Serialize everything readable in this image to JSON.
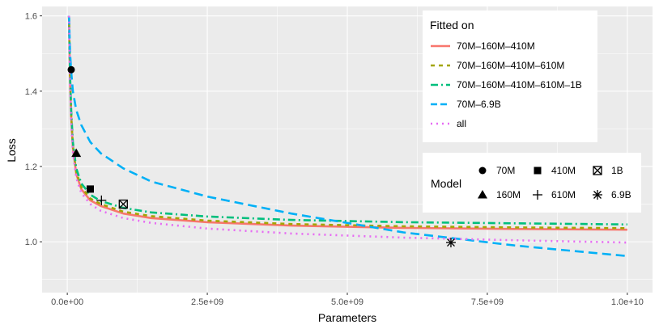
{
  "chart_data": {
    "type": "line",
    "xlabel": "Parameters",
    "ylabel": "Loss",
    "xlim": [
      -450000000.0,
      10450000000.0
    ],
    "ylim": [
      0.865,
      1.625
    ],
    "x_ticks": [
      0,
      2500000000,
      5000000000,
      7500000000,
      10000000000
    ],
    "x_tick_labels": [
      "0.0e+00",
      "2.5e+09",
      "5.0e+09",
      "7.5e+09",
      "1.0e+10"
    ],
    "y_ticks": [
      1.0,
      1.2,
      1.4,
      1.6
    ],
    "y_tick_labels": [
      "1.0",
      "1.2",
      "1.4",
      "1.6"
    ],
    "grid": true,
    "fitted_legend": {
      "title": "Fitted on",
      "position": "top-right"
    },
    "model_legend": {
      "title": "Model",
      "position": "right"
    },
    "series": [
      {
        "name": "70M–160M–410M",
        "color": "#F8766D",
        "dash": "solid",
        "x": [
          30000000,
          50000000,
          70000000,
          100000000,
          160000000,
          250000000,
          410000000,
          600000000,
          1000000000,
          1500000000,
          2500000000,
          4000000000,
          6000000000,
          8000000000,
          10000000000
        ],
        "y": [
          1.6,
          1.42,
          1.33,
          1.25,
          1.18,
          1.14,
          1.11,
          1.095,
          1.075,
          1.063,
          1.052,
          1.043,
          1.037,
          1.034,
          1.032
        ]
      },
      {
        "name": "70M–160M–410M–610M",
        "color": "#A3A500",
        "dash": "dashed",
        "x": [
          30000000,
          50000000,
          70000000,
          100000000,
          160000000,
          250000000,
          410000000,
          600000000,
          1000000000,
          1500000000,
          2500000000,
          4000000000,
          6000000000,
          8000000000,
          10000000000
        ],
        "y": [
          1.6,
          1.43,
          1.335,
          1.255,
          1.185,
          1.145,
          1.115,
          1.1,
          1.08,
          1.068,
          1.056,
          1.047,
          1.041,
          1.038,
          1.036
        ]
      },
      {
        "name": "70M–160M–410M–610M–1B",
        "color": "#00BF7D",
        "dash": "dotdash",
        "x": [
          30000000,
          50000000,
          70000000,
          100000000,
          160000000,
          250000000,
          410000000,
          600000000,
          1000000000,
          1500000000,
          2500000000,
          4000000000,
          6000000000,
          8000000000,
          10000000000
        ],
        "y": [
          1.6,
          1.44,
          1.345,
          1.265,
          1.195,
          1.155,
          1.125,
          1.108,
          1.09,
          1.078,
          1.067,
          1.058,
          1.052,
          1.049,
          1.046
        ]
      },
      {
        "name": "70M–6.9B",
        "color": "#00B0F6",
        "dash": "longdash",
        "x": [
          30000000,
          50000000,
          70000000,
          100000000,
          160000000,
          250000000,
          410000000,
          600000000,
          1000000000,
          1500000000,
          2500000000,
          4000000000,
          6000000000,
          8000000000,
          10000000000
        ],
        "y": [
          1.6,
          1.5,
          1.45,
          1.4,
          1.35,
          1.31,
          1.265,
          1.235,
          1.195,
          1.16,
          1.12,
          1.075,
          1.025,
          0.99,
          0.962
        ]
      },
      {
        "name": "all",
        "color": "#E76BF3",
        "dash": "dotted",
        "x": [
          30000000,
          50000000,
          70000000,
          100000000,
          160000000,
          250000000,
          410000000,
          600000000,
          1000000000,
          1500000000,
          2500000000,
          4000000000,
          6000000000,
          8000000000,
          10000000000
        ],
        "y": [
          1.6,
          1.41,
          1.32,
          1.24,
          1.17,
          1.13,
          1.1,
          1.082,
          1.063,
          1.05,
          1.035,
          1.022,
          1.011,
          1.004,
          0.998
        ]
      }
    ],
    "points": [
      {
        "model": "70M",
        "x": 70000000,
        "y": 1.457,
        "shape": "circle"
      },
      {
        "model": "160M",
        "x": 160000000,
        "y": 1.235,
        "shape": "triangle"
      },
      {
        "model": "410M",
        "x": 410000000,
        "y": 1.14,
        "shape": "square"
      },
      {
        "model": "610M",
        "x": 610000000,
        "y": 1.11,
        "shape": "plus"
      },
      {
        "model": "1B",
        "x": 1000000000,
        "y": 1.1,
        "shape": "boxx"
      },
      {
        "model": "6.9B",
        "x": 6850000000,
        "y": 0.998,
        "shape": "asterisk"
      }
    ]
  }
}
